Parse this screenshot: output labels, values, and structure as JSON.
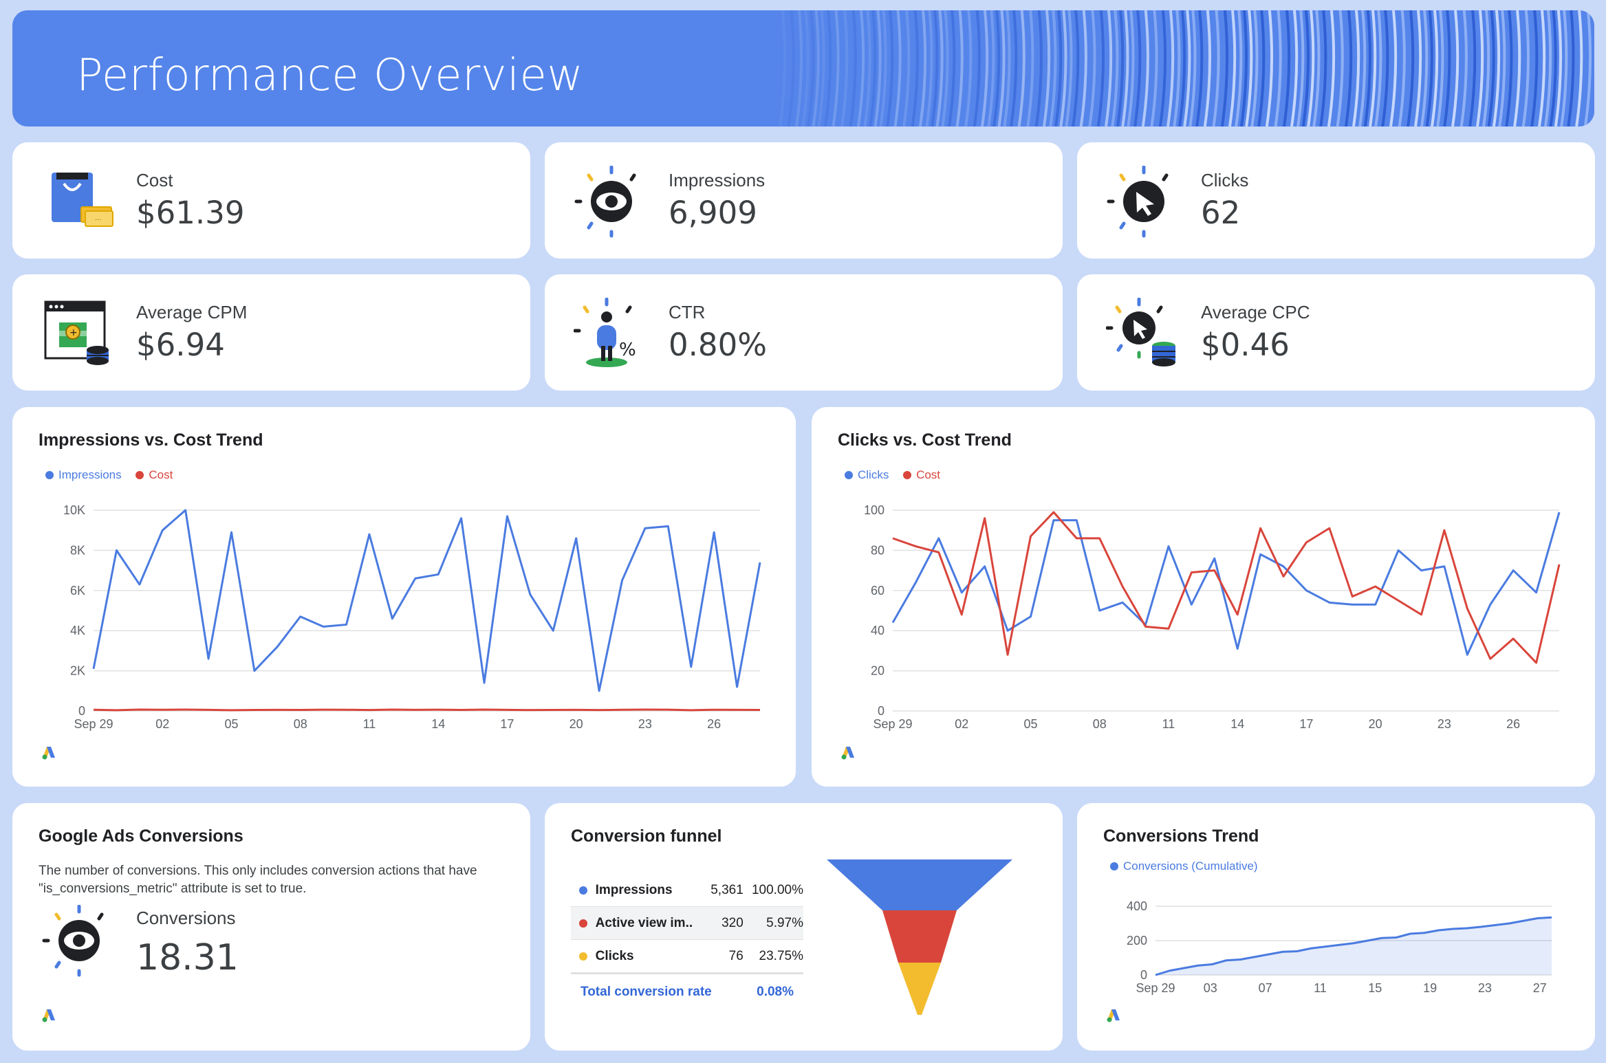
{
  "header": {
    "title": "Performance Overview"
  },
  "kpis": [
    {
      "label": "Cost",
      "value": "$61.39",
      "icon": "shopping-bag-icon"
    },
    {
      "label": "Impressions",
      "value": "6,909",
      "icon": "eye-icon"
    },
    {
      "label": "Clicks",
      "value": "62",
      "icon": "cursor-click-icon"
    },
    {
      "label": "Average CPM",
      "value": "$6.94",
      "icon": "browser-money-icon"
    },
    {
      "label": "CTR",
      "value": "0.80%",
      "icon": "person-percent-icon"
    },
    {
      "label": "Average CPC",
      "value": "$0.46",
      "icon": "cursor-coins-icon"
    }
  ],
  "colors": {
    "blue": "#4a7be0",
    "red": "#d9453b",
    "yellow": "#f2bc2e",
    "green": "#34a853",
    "header": "#5585ea",
    "bg": "#c9d9f8"
  },
  "impressions_cost": {
    "title": "Impressions vs. Cost Trend",
    "legend": [
      "Impressions",
      "Cost"
    ]
  },
  "clicks_cost": {
    "title": "Clicks vs. Cost Trend",
    "legend": [
      "Clicks",
      "Cost"
    ]
  },
  "conversions_card": {
    "title": "Google Ads Conversions",
    "description": "The number of conversions. This only includes conversion actions that have \"is_conversions_metric\" attribute is set to true.",
    "label": "Conversions",
    "value": "18.31"
  },
  "funnel": {
    "title": "Conversion funnel",
    "rows": [
      {
        "name": "Impressions",
        "value": "5,361",
        "pct": "100.00%",
        "color": "#4a7be0"
      },
      {
        "name": "Active view im...",
        "value": "320",
        "pct": "5.97%",
        "color": "#d9453b"
      },
      {
        "name": "Clicks",
        "value": "76",
        "pct": "23.75%",
        "color": "#f2bc2e"
      }
    ],
    "total_label": "Total conversion rate",
    "total_value": "0.08%"
  },
  "conv_trend": {
    "title": "Conversions Trend",
    "legend": [
      "Conversions (Cumulative)"
    ]
  },
  "chart_data": [
    {
      "type": "line",
      "title": "Impressions vs. Cost Trend",
      "x": [
        "Sep 29",
        "30",
        "01",
        "02",
        "03",
        "04",
        "05",
        "06",
        "07",
        "08",
        "09",
        "10",
        "11",
        "12",
        "13",
        "14",
        "15",
        "16",
        "17",
        "18",
        "19",
        "20",
        "21",
        "22",
        "23",
        "24",
        "25",
        "26",
        "27",
        "28"
      ],
      "x_tick_labels": [
        "Sep 29",
        "02",
        "05",
        "08",
        "11",
        "14",
        "17",
        "20",
        "23",
        "26"
      ],
      "y_tick_labels": [
        "0",
        "2K",
        "4K",
        "6K",
        "8K",
        "10K"
      ],
      "ylim": [
        0,
        10000
      ],
      "grid": true,
      "legend_position": "top-left",
      "series": [
        {
          "name": "Impressions",
          "color": "#4a7be0",
          "values": [
            2100,
            8000,
            6300,
            9000,
            10000,
            2600,
            8900,
            2000,
            3200,
            4700,
            4200,
            4300,
            8800,
            4600,
            6600,
            6800,
            9600,
            1400,
            9700,
            5800,
            4000,
            8600,
            1000,
            6500,
            9100,
            9200,
            2200,
            8900,
            1200,
            7400
          ]
        },
        {
          "name": "Cost",
          "color": "#d9453b",
          "values": [
            60,
            40,
            70,
            60,
            70,
            55,
            40,
            50,
            55,
            50,
            65,
            60,
            45,
            70,
            55,
            65,
            50,
            70,
            55,
            45,
            50,
            55,
            45,
            60,
            70,
            65,
            40,
            60,
            55,
            50
          ]
        }
      ]
    },
    {
      "type": "line",
      "title": "Clicks vs. Cost Trend",
      "x": [
        "Sep 29",
        "30",
        "01",
        "02",
        "03",
        "04",
        "05",
        "06",
        "07",
        "08",
        "09",
        "10",
        "11",
        "12",
        "13",
        "14",
        "15",
        "16",
        "17",
        "18",
        "19",
        "20",
        "21",
        "22",
        "23",
        "24",
        "25",
        "26",
        "27",
        "28"
      ],
      "x_tick_labels": [
        "Sep 29",
        "02",
        "05",
        "08",
        "11",
        "14",
        "17",
        "20",
        "23",
        "26"
      ],
      "y_tick_labels": [
        "0",
        "20",
        "40",
        "60",
        "80",
        "100"
      ],
      "ylim": [
        0,
        100
      ],
      "grid": true,
      "legend_position": "top-left",
      "series": [
        {
          "name": "Clicks",
          "color": "#4a7be0",
          "values": [
            44,
            64,
            86,
            59,
            72,
            40,
            47,
            95,
            95,
            50,
            54,
            43,
            82,
            53,
            76,
            31,
            78,
            72,
            60,
            54,
            53,
            53,
            80,
            70,
            72,
            28,
            53,
            70,
            59,
            99
          ]
        },
        {
          "name": "Cost",
          "color": "#d9453b",
          "values": [
            86,
            82,
            79,
            48,
            96,
            28,
            87,
            99,
            86,
            86,
            62,
            42,
            41,
            69,
            70,
            48,
            91,
            67,
            84,
            91,
            57,
            62,
            55,
            48,
            90,
            51,
            26,
            36,
            24,
            73
          ]
        }
      ]
    },
    {
      "type": "area",
      "title": "Conversions Trend",
      "x_tick_labels": [
        "Sep 29",
        "03",
        "07",
        "11",
        "15",
        "19",
        "23",
        "27"
      ],
      "y_tick_labels": [
        "0",
        "200",
        "400"
      ],
      "ylim": [
        0,
        400
      ],
      "grid": true,
      "legend_position": "top-left",
      "series": [
        {
          "name": "Conversions (Cumulative)",
          "color": "#4a7be0",
          "values": [
            0,
            25,
            40,
            55,
            62,
            85,
            90,
            105,
            120,
            135,
            138,
            155,
            165,
            175,
            185,
            200,
            215,
            218,
            240,
            245,
            260,
            268,
            272,
            280,
            290,
            300,
            315,
            330,
            335
          ]
        }
      ]
    }
  ]
}
